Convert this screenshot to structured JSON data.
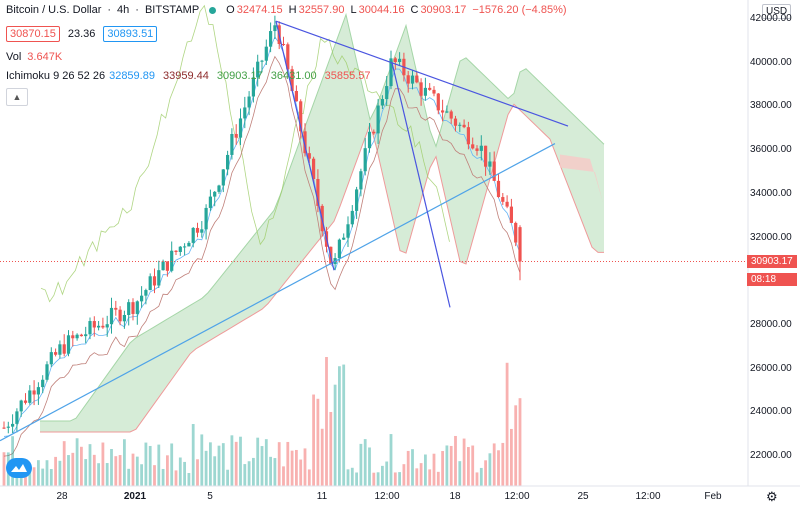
{
  "header": {
    "symbol": "Bitcoin / U.S. Dollar",
    "interval": "4h",
    "exchange": "BITSTAMP",
    "sep1": "·",
    "sep2": "·",
    "ohlc": {
      "o_label": "O",
      "o": "32474.15",
      "h_label": "H",
      "h": "32557.90",
      "l_label": "L",
      "l": "30044.16",
      "c_label": "C",
      "c": "30903.17",
      "change": "−1576.20 (−4.85%)"
    },
    "bid": "30870.15",
    "spread": "23.36",
    "ask": "30893.51",
    "vol_label": "Vol",
    "vol_value": "3.647K",
    "ichimoku_label": "Ichimoku 9 26 52 26",
    "ichimoku_values": [
      "32859.89",
      "33959.44",
      "30903.17",
      "36431.00",
      "35855.57"
    ],
    "ichimoku_colors": [
      "#2196f3",
      "#8d2b2b",
      "#43a047",
      "#43a047",
      "#ef5350"
    ],
    "collapse_icon": "chevron-up-icon"
  },
  "price_axis": {
    "currency": "USD",
    "ticks": [
      "42000.00",
      "40000.00",
      "38000.00",
      "36000.00",
      "34000.00",
      "32000.00",
      "30000.00",
      "28000.00",
      "26000.00",
      "24000.00",
      "22000.00"
    ],
    "current_price": "30903.17",
    "countdown": "08:18"
  },
  "time_axis": {
    "ticks": [
      "28",
      "2021",
      "5",
      "11",
      "12:00",
      "18",
      "12:00",
      "25",
      "12:00",
      "Feb"
    ]
  },
  "colors": {
    "up": "#26a69a",
    "down": "#ef5350",
    "trendline_dark": "#4a55e0",
    "trendline_light": "#4fa3e8",
    "cloud_fill": "#c8e6c9",
    "cloud_fill_bear": "#f8c9c7"
  },
  "icons": {
    "logo": "tradingview-logo-icon",
    "settings": "gear-icon"
  },
  "chart_data": {
    "type": "candlestick",
    "symbol": "BTCUSD",
    "ylim": [
      21000,
      43000
    ],
    "candles_ohlc_key_points": [
      {
        "label": "Dec 24",
        "price": 23300
      },
      {
        "label": "Dec 28",
        "price": 27000
      },
      {
        "label": "2021",
        "price": 29000
      },
      {
        "label": "Jan 5",
        "price": 33000
      },
      {
        "label": "Jan 8 high",
        "price": 41900
      },
      {
        "label": "Jan 11 low",
        "price": 30500
      },
      {
        "label": "Jan 14 high",
        "price": 40100
      },
      {
        "label": "Jan 18",
        "price": 36200
      },
      {
        "label": "Jan 21 close",
        "price": 30903.17
      }
    ]
  }
}
